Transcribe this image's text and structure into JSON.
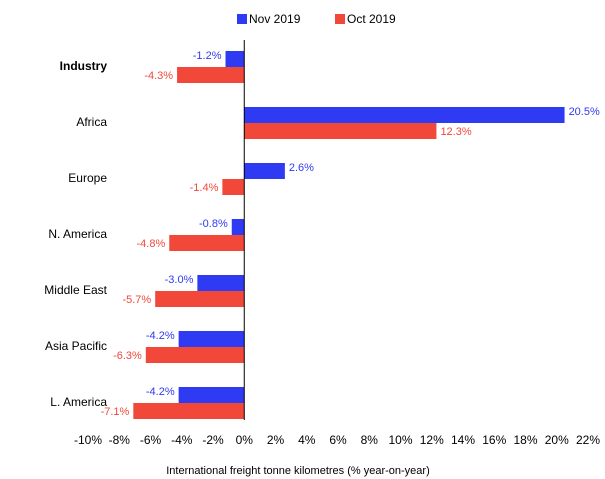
{
  "chart_data": {
    "type": "hbar",
    "xlabel": "International freight tonne kilometres (% year-on-year)",
    "categories": [
      "Industry",
      "Africa",
      "Europe",
      "N. America",
      "Middle East",
      "Asia Pacific",
      "L. America"
    ],
    "series": [
      {
        "name": "Nov 2019",
        "color": "#2e3bf2",
        "values": [
          -1.2,
          20.5,
          2.6,
          -0.8,
          -3.0,
          -4.2,
          -4.2
        ],
        "value_labels": [
          "-1.2%",
          "20.5%",
          "2.6%",
          "-0.8%",
          "-3.0%",
          "-4.2%",
          "-4.2%"
        ]
      },
      {
        "name": "Oct 2019",
        "color": "#f2483a",
        "values": [
          -4.3,
          12.3,
          -1.4,
          -4.8,
          -5.7,
          -6.3,
          -7.1
        ],
        "value_labels": [
          "-4.3%",
          "12.3%",
          "-1.4%",
          "-4.8%",
          "-5.7%",
          "-6.3%",
          "-7.1%"
        ]
      }
    ],
    "xlim": [
      -10,
      22
    ],
    "xticks": [
      {
        "value": -10,
        "label": "-10%"
      },
      {
        "value": -8,
        "label": "-8%"
      },
      {
        "value": -6,
        "label": "-6%"
      },
      {
        "value": -4,
        "label": "-4%"
      },
      {
        "value": -2,
        "label": "-2%"
      },
      {
        "value": 0,
        "label": "0%"
      },
      {
        "value": 2,
        "label": "2%"
      },
      {
        "value": 4,
        "label": "4%"
      },
      {
        "value": 6,
        "label": "6%"
      },
      {
        "value": 8,
        "label": "8%"
      },
      {
        "value": 10,
        "label": "10%"
      },
      {
        "value": 12,
        "label": "12%"
      },
      {
        "value": 14,
        "label": "14%"
      },
      {
        "value": 16,
        "label": "16%"
      },
      {
        "value": 18,
        "label": "18%"
      },
      {
        "value": 20,
        "label": "20%"
      },
      {
        "value": 22,
        "label": "22%"
      }
    ],
    "legend": "top"
  }
}
